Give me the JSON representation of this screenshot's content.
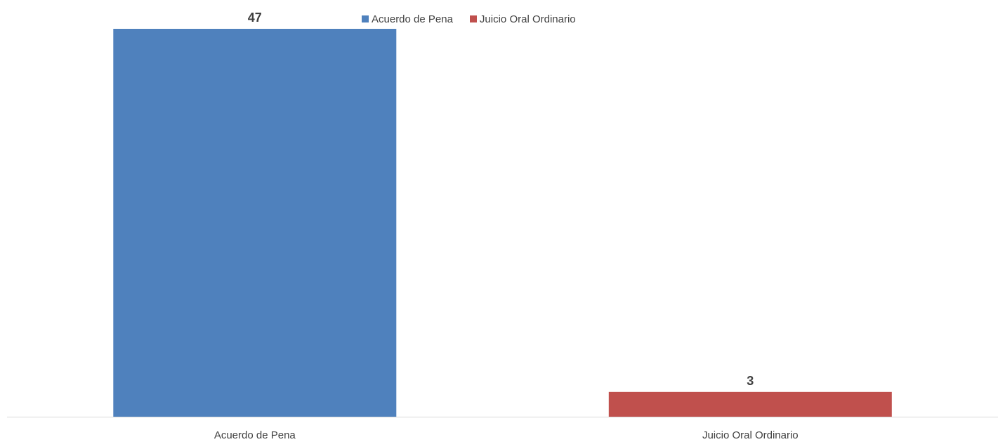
{
  "chart_data": {
    "type": "bar",
    "categories": [
      "Acuerdo de Pena",
      "Juicio Oral Ordinario"
    ],
    "values": [
      47,
      3
    ],
    "data_labels": [
      "47",
      "3"
    ],
    "colors": [
      "#4F81BD",
      "#C0504D"
    ],
    "legend": {
      "position": "top",
      "entries": [
        {
          "label": "Acuerdo de Pena",
          "color": "#4F81BD"
        },
        {
          "label": "Juicio Oral Ordinario",
          "color": "#C0504D"
        }
      ]
    },
    "title": "",
    "xlabel": "",
    "ylabel": "",
    "ylim": [
      0,
      47
    ],
    "grid": false,
    "y_axis_visible": false
  }
}
